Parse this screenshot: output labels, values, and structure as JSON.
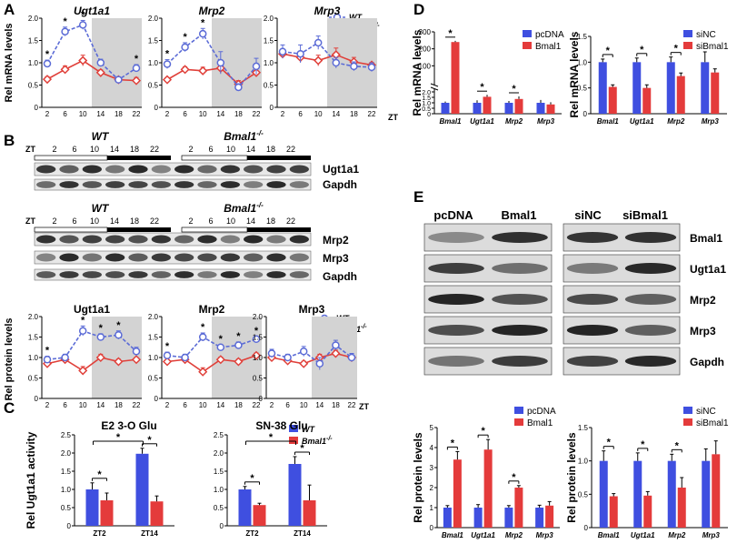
{
  "panels": {
    "A": "A",
    "B": "B",
    "C": "C",
    "D": "D",
    "E": "E"
  },
  "colors": {
    "wt": "#5b6bd6",
    "ko": "#e0403a",
    "pcdna": "#3f4fe0",
    "bmal1": "#e43b3b",
    "shade": "#d3d3d3"
  },
  "labels": {
    "zt": "ZT",
    "wt": "WT",
    "ko": "Bmal1",
    "ko_sup": "-/-",
    "rel_mrna": "Rel mRNA levels",
    "rel_protein": "Rel protein levels",
    "rel_activity": "Rel Ugt1a1 activity",
    "star": "*"
  },
  "panelA": {
    "ylabel": "Rel mRNA levels",
    "xticks": [
      "2",
      "6",
      "10",
      "14",
      "18",
      "22"
    ],
    "charts": [
      {
        "title": "Ugt1a1",
        "ylim": [
          0,
          2
        ],
        "yticks": [
          "0",
          "0.5",
          "1.0",
          "1.5",
          "2.0"
        ],
        "wt": [
          0.98,
          1.7,
          1.85,
          1.0,
          0.62,
          0.88
        ],
        "wt_err": [
          0.08,
          0.1,
          0.1,
          0.08,
          0.06,
          0.08
        ],
        "ko": [
          0.63,
          0.85,
          1.05,
          0.78,
          0.62,
          0.6
        ],
        "ko_err": [
          0.06,
          0.08,
          0.12,
          0.06,
          0.06,
          0.07
        ],
        "stars": [
          0,
          1,
          2,
          5
        ]
      },
      {
        "title": "Mrp2",
        "ylim": [
          0,
          2
        ],
        "yticks": [
          "0",
          "0.5",
          "1.0",
          "1.5",
          "2.0"
        ],
        "wt": [
          0.97,
          1.35,
          1.65,
          1.0,
          0.45,
          0.92
        ],
        "wt_err": [
          0.1,
          0.1,
          0.12,
          0.25,
          0.08,
          0.18
        ],
        "ko": [
          0.62,
          0.85,
          0.82,
          0.88,
          0.52,
          0.78
        ],
        "ko_err": [
          0.05,
          0.06,
          0.08,
          0.1,
          0.08,
          0.08
        ],
        "stars": [
          0,
          1,
          2
        ]
      },
      {
        "title": "Mrp3",
        "ylim": [
          0,
          2
        ],
        "yticks": [
          "0",
          "0.5",
          "1.0",
          "1.5",
          "2.0"
        ],
        "wt": [
          1.25,
          1.2,
          1.45,
          1.0,
          0.92,
          0.9
        ],
        "wt_err": [
          0.15,
          0.2,
          0.15,
          0.12,
          0.1,
          0.1
        ],
        "ko": [
          1.2,
          1.12,
          1.05,
          1.18,
          1.02,
          0.95
        ],
        "ko_err": [
          0.08,
          0.1,
          0.12,
          0.15,
          0.1,
          0.06
        ],
        "stars": []
      }
    ]
  },
  "panelB": {
    "zt": "ZT",
    "ticks": [
      "2",
      "6",
      "10",
      "14",
      "18",
      "22",
      "2",
      "6",
      "10",
      "14",
      "18",
      "22"
    ],
    "groups": [
      "WT",
      "Bmal1"
    ],
    "blot_labels_1": [
      "Ugt1a1",
      "Gapdh"
    ],
    "blot_labels_2": [
      "Mrp2",
      "Mrp3",
      "Gapdh"
    ],
    "ylabel": "Rel protein levels",
    "xticks": [
      "2",
      "6",
      "10",
      "14",
      "18",
      "22"
    ],
    "charts": [
      {
        "title": "Ugt1a1",
        "ylim": [
          0,
          2
        ],
        "yticks": [
          "0",
          "0.5",
          "1.0",
          "1.5",
          "2.0"
        ],
        "wt": [
          0.95,
          1.0,
          1.65,
          1.5,
          1.55,
          1.15
        ],
        "wt_err": [
          0.08,
          0.08,
          0.12,
          0.08,
          0.1,
          0.1
        ],
        "ko": [
          0.85,
          0.95,
          0.68,
          1.0,
          0.9,
          0.95
        ],
        "ko_err": [
          0.06,
          0.08,
          0.1,
          0.08,
          0.06,
          0.05
        ],
        "stars": [
          0,
          2,
          3,
          4
        ]
      },
      {
        "title": "Mrp2",
        "ylim": [
          0,
          2
        ],
        "yticks": [
          "0",
          "0.5",
          "1.0",
          "1.5",
          "2.0"
        ],
        "wt": [
          1.05,
          1.0,
          1.5,
          1.25,
          1.3,
          1.45
        ],
        "wt_err": [
          0.08,
          0.08,
          0.1,
          0.06,
          0.08,
          0.06
        ],
        "ko": [
          0.9,
          0.95,
          0.65,
          0.95,
          0.9,
          1.05
        ],
        "ko_err": [
          0.08,
          0.1,
          0.1,
          0.06,
          0.06,
          0.06
        ],
        "stars": [
          0,
          2,
          3,
          4,
          5
        ]
      },
      {
        "title": "Mrp3",
        "ylim": [
          0,
          2
        ],
        "yticks": [
          "0",
          "0.5",
          "1.0",
          "1.5",
          "2.0"
        ],
        "wt": [
          1.1,
          1.0,
          1.15,
          0.85,
          1.3,
          1.0
        ],
        "wt_err": [
          0.1,
          0.08,
          0.12,
          0.15,
          0.12,
          0.1
        ],
        "ko": [
          1.0,
          0.92,
          0.85,
          1.0,
          1.1,
          1.0
        ],
        "ko_err": [
          0.06,
          0.08,
          0.06,
          0.08,
          0.08,
          0.06
        ],
        "stars": []
      }
    ]
  },
  "panelC": {
    "ylabel": "Rel Ugt1a1 activity",
    "yticks": [
      "0",
      "0.5",
      "1.0",
      "1.5",
      "2.0",
      "2.5"
    ],
    "categories": [
      "ZT2",
      "ZT14"
    ],
    "charts": [
      {
        "title": "E2 3-O Glu",
        "wt": [
          1.0,
          1.98
        ],
        "wt_err": [
          0.18,
          0.15
        ],
        "ko": [
          0.7,
          0.67
        ],
        "ko_err": [
          0.2,
          0.15
        ]
      },
      {
        "title": "SN-38 Glu",
        "wt": [
          1.0,
          1.7
        ],
        "wt_err": [
          0.08,
          0.2
        ],
        "ko": [
          0.57,
          0.7
        ],
        "ko_err": [
          0.05,
          0.42
        ]
      }
    ]
  },
  "panelD": {
    "ylabel": "Rel mRNA levels",
    "categories": [
      "Bmal1",
      "Ugt1a1",
      "Mrp2",
      "Mrp3"
    ],
    "left": {
      "legend": [
        "pcDNA",
        "Bmal1"
      ],
      "ctrl": [
        1.0,
        1.0,
        1.0,
        1.0
      ],
      "ctrl_err": [
        0.03,
        0.15,
        0.08,
        0.18
      ],
      "trt": [
        240,
        1.55,
        1.35,
        0.85
      ],
      "trt_err": [
        2,
        0.1,
        0.15,
        0.12
      ],
      "yticks_low": [
        "0",
        "0.5",
        "1.0",
        "1.5",
        "2.0"
      ],
      "yticks_high": [
        "0",
        "100",
        "200",
        "300"
      ]
    },
    "right": {
      "legend": [
        "siNC",
        "siBmal1"
      ],
      "ctrl": [
        1.0,
        1.0,
        1.0,
        1.0
      ],
      "ctrl_err": [
        0.06,
        0.08,
        0.1,
        0.2
      ],
      "trt": [
        0.52,
        0.5,
        0.73,
        0.8
      ],
      "trt_err": [
        0.04,
        0.06,
        0.06,
        0.07
      ],
      "yticks": [
        "0",
        "0.5",
        "1.0",
        "1.5"
      ]
    }
  },
  "panelE": {
    "lanes_left": [
      "pcDNA",
      "Bmal1"
    ],
    "lanes_right": [
      "siNC",
      "siBmal1"
    ],
    "blot_labels": [
      "Bmal1",
      "Ugt1a1",
      "Mrp2",
      "Mrp3",
      "Gapdh"
    ],
    "ylabel": "Rel protein levels",
    "categories": [
      "Bmal1",
      "Ugt1a1",
      "Mrp2",
      "Mrp3"
    ],
    "left": {
      "legend": [
        "pcDNA",
        "Bmal1"
      ],
      "yticks": [
        "0",
        "1",
        "2",
        "3",
        "4",
        "5"
      ],
      "ctrl": [
        1.0,
        1.0,
        1.0,
        1.0
      ],
      "ctrl_err": [
        0.1,
        0.15,
        0.1,
        0.12
      ],
      "trt": [
        3.4,
        3.9,
        2.0,
        1.1
      ],
      "trt_err": [
        0.4,
        0.5,
        0.1,
        0.2
      ]
    },
    "right": {
      "legend": [
        "siNC",
        "siBmal1"
      ],
      "yticks": [
        "0",
        "0.5",
        "1.0",
        "1.5"
      ],
      "ctrl": [
        1.0,
        1.0,
        1.0,
        1.0
      ],
      "ctrl_err": [
        0.15,
        0.12,
        0.1,
        0.18
      ],
      "trt": [
        0.47,
        0.48,
        0.6,
        1.1
      ],
      "trt_err": [
        0.04,
        0.06,
        0.15,
        0.2
      ]
    }
  }
}
